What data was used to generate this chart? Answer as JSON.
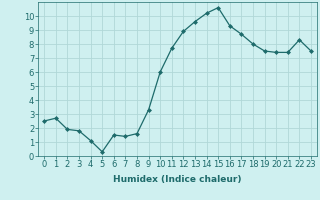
{
  "x": [
    0,
    1,
    2,
    3,
    4,
    5,
    6,
    7,
    8,
    9,
    10,
    11,
    12,
    13,
    14,
    15,
    16,
    17,
    18,
    19,
    20,
    21,
    22,
    23
  ],
  "y": [
    2.5,
    2.7,
    1.9,
    1.8,
    1.1,
    0.3,
    1.5,
    1.4,
    1.6,
    3.3,
    6.0,
    7.7,
    8.9,
    9.6,
    10.2,
    10.6,
    9.3,
    8.7,
    8.0,
    7.5,
    7.4,
    7.4,
    8.3,
    7.5
  ],
  "line_color": "#1e6b6b",
  "marker": "D",
  "marker_size": 2,
  "background_color": "#cff0f0",
  "grid_color": "#b0d8d8",
  "xlabel": "Humidex (Indice chaleur)",
  "xlabel_fontsize": 6.5,
  "tick_fontsize": 6,
  "xlim": [
    -0.5,
    23.5
  ],
  "ylim": [
    0,
    11
  ],
  "yticks": [
    0,
    1,
    2,
    3,
    4,
    5,
    6,
    7,
    8,
    9,
    10
  ],
  "xticks": [
    0,
    1,
    2,
    3,
    4,
    5,
    6,
    7,
    8,
    9,
    10,
    11,
    12,
    13,
    14,
    15,
    16,
    17,
    18,
    19,
    20,
    21,
    22,
    23
  ]
}
